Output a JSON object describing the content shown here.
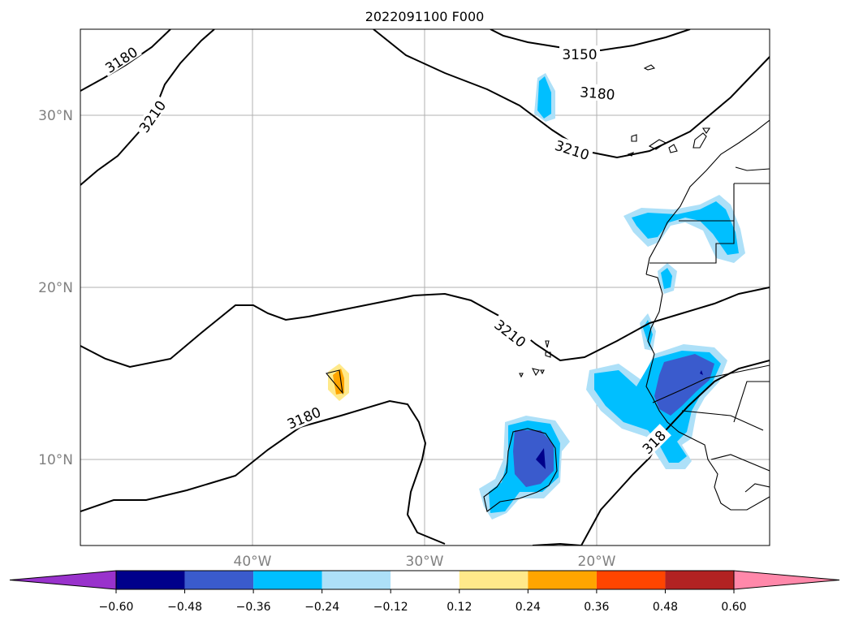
{
  "title": "2022091100 F000",
  "map": {
    "lon_ticks": [
      "40°W",
      "30°W",
      "20°W"
    ],
    "lat_ticks": [
      "30°N",
      "20°N",
      "10°N"
    ],
    "gridlines": true,
    "contour_labels": [
      "3180",
      "3210",
      "3150",
      "3180",
      "3210",
      "3210",
      "3180",
      "318"
    ]
  },
  "colorbar": {
    "ticks": [
      "−0.60",
      "−0.48",
      "−0.36",
      "−0.24",
      "−0.12",
      "0.12",
      "0.24",
      "0.36",
      "0.48",
      "0.60"
    ],
    "colors": [
      "#9932cc",
      "#00008b",
      "#3a5bcd",
      "#00bfff",
      "#ade0f8",
      "#ffffff",
      "#ffe98a",
      "#ffa500",
      "#ff4500",
      "#b22222",
      "#ff88aa"
    ]
  }
}
